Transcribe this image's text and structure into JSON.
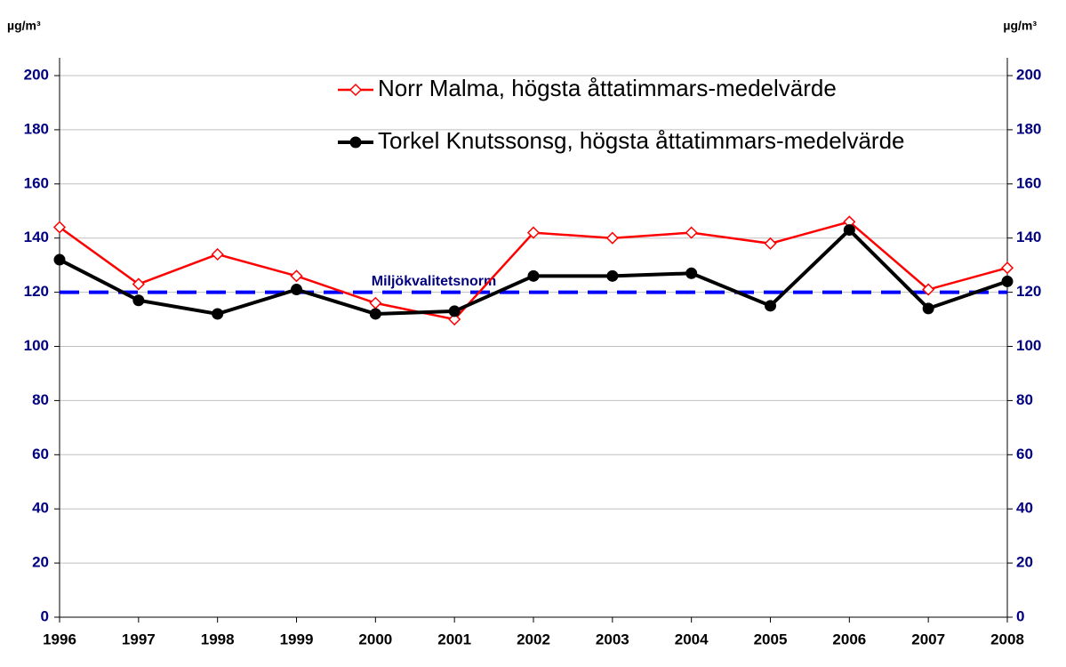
{
  "chart_data": {
    "type": "line",
    "y_label": "µg/m³",
    "y2_label": "µg/m³",
    "categories": [
      "1996",
      "1997",
      "1998",
      "1999",
      "2000",
      "2001",
      "2002",
      "2003",
      "2004",
      "2005",
      "2006",
      "2007",
      "2008"
    ],
    "series": [
      {
        "name": "Norr Malma, högsta åttatimmars-medelvärde",
        "color": "#ff0000",
        "marker": "diamond-open",
        "values": [
          144,
          123,
          134,
          126,
          116,
          110,
          142,
          140,
          142,
          138,
          146,
          121,
          129
        ]
      },
      {
        "name": "Torkel Knutssonsg, högsta åttatimmars-medelvärde",
        "color": "#000000",
        "marker": "circle",
        "values": [
          132,
          117,
          112,
          121,
          112,
          113,
          126,
          126,
          127,
          115,
          143,
          114,
          124
        ]
      }
    ],
    "reference_line": {
      "value": 120,
      "label": "Miljökvalitetsnorm",
      "color": "#0000ff"
    },
    "ylim": [
      0,
      200
    ],
    "yticks": [
      0,
      20,
      40,
      60,
      80,
      100,
      120,
      140,
      160,
      180,
      200
    ],
    "y2lim": [
      0,
      200
    ],
    "y2ticks": [
      0,
      20,
      40,
      60,
      80,
      100,
      120,
      140,
      160,
      180,
      200
    ],
    "grid": true,
    "legend": "top"
  }
}
